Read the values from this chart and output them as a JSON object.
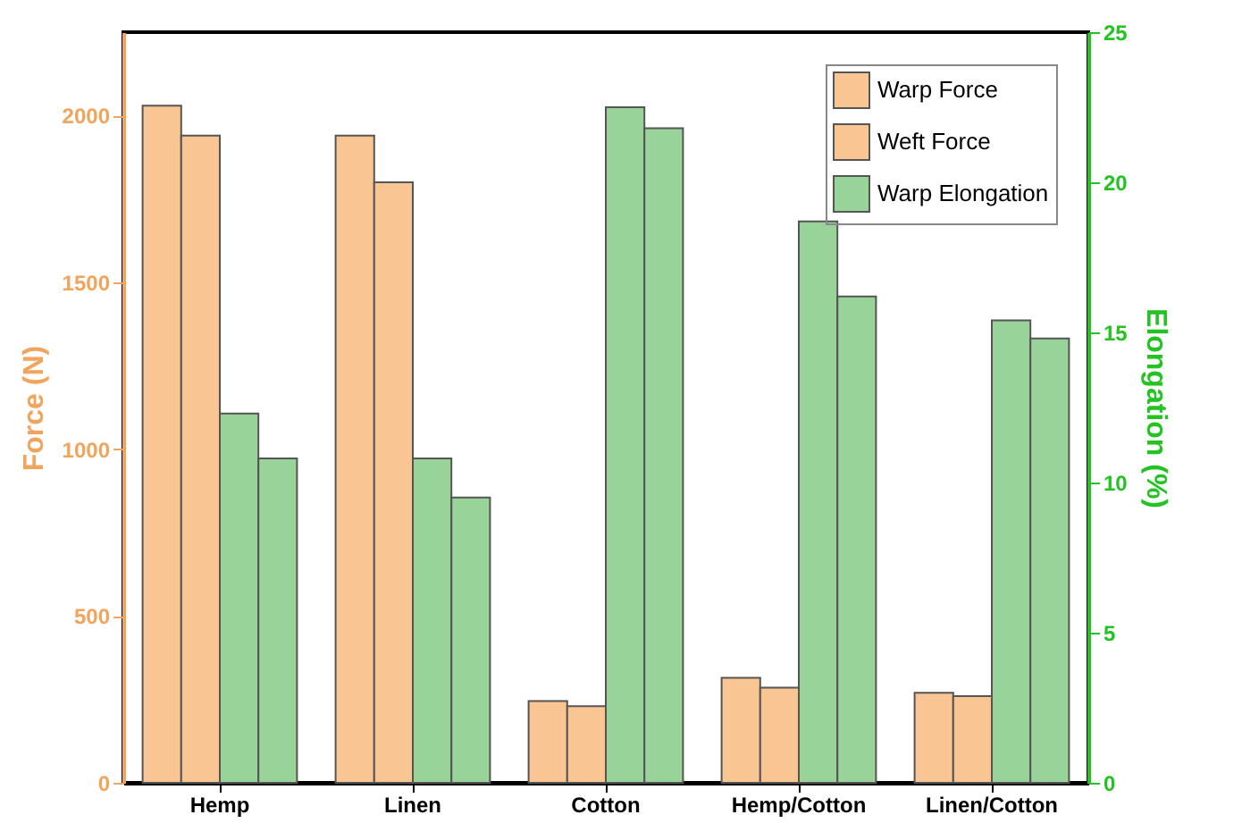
{
  "chart_data": {
    "type": "bar",
    "categories": [
      "Hemp",
      "Linen",
      "Cotton",
      "Hemp/Cotton",
      "Linen/Cotton"
    ],
    "series": [
      {
        "name": "Warp Force",
        "color": "#f9c592",
        "values": [
          2030,
          1940,
          245,
          315,
          270
        ]
      },
      {
        "name": "Weft Force",
        "color": "#f9c592",
        "values": [
          1940,
          1800,
          230,
          285,
          260
        ]
      },
      {
        "name": "Warp Elongation",
        "color": "#98d49a",
        "axis": "y2",
        "values": [
          12.3,
          10.8,
          22.5,
          18.7,
          15.4
        ]
      },
      {
        "color": "#98d49a",
        "axis": "y2",
        "values": [
          10.8,
          9.5,
          21.8,
          16.2,
          14.8
        ]
      }
    ],
    "ylabel": "Force (N)",
    "y2label": "Elongation (%)",
    "ylim": [
      0,
      2250
    ],
    "yticks": [
      0,
      500,
      1000,
      1500,
      2000
    ],
    "y2lim": [
      0,
      25
    ],
    "y2ticks": [
      0,
      5,
      10,
      15,
      20,
      25
    ],
    "legend": "top right",
    "grid": false
  }
}
